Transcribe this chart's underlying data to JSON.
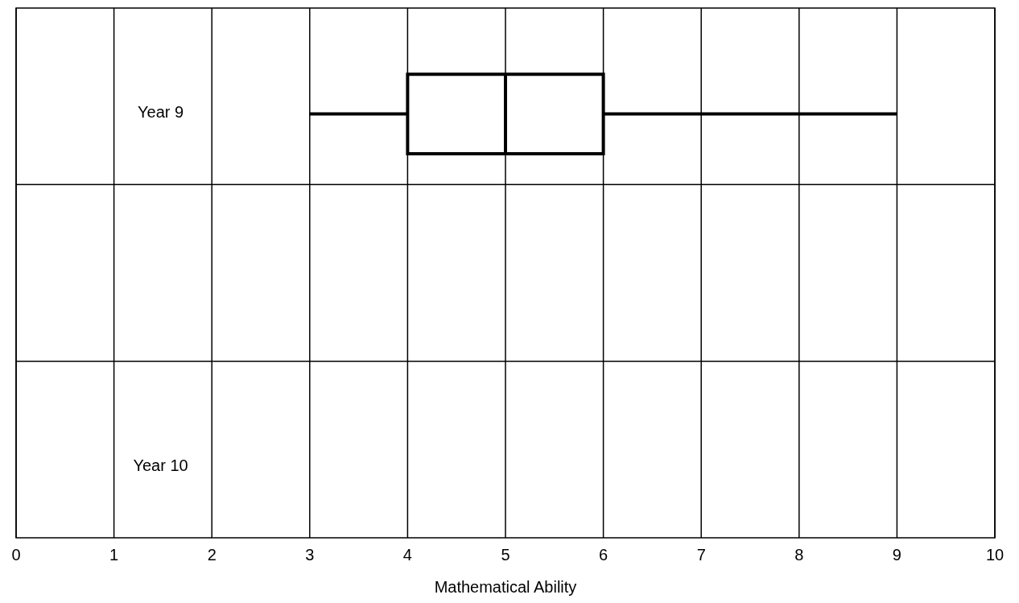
{
  "chart_data": {
    "type": "box",
    "orientation": "horizontal",
    "xlabel": "Mathematical Ability",
    "categories": [
      "Year 9",
      null,
      "Year 10"
    ],
    "boxes": [
      {
        "low": 3,
        "q1": 4,
        "median": 5,
        "q3": 6,
        "high": 9
      },
      null,
      null
    ],
    "color": "#000000",
    "xlim": [
      0,
      10
    ],
    "xticks": [
      0,
      1,
      2,
      3,
      4,
      5,
      6,
      7,
      8,
      9,
      10
    ],
    "grid": true
  }
}
